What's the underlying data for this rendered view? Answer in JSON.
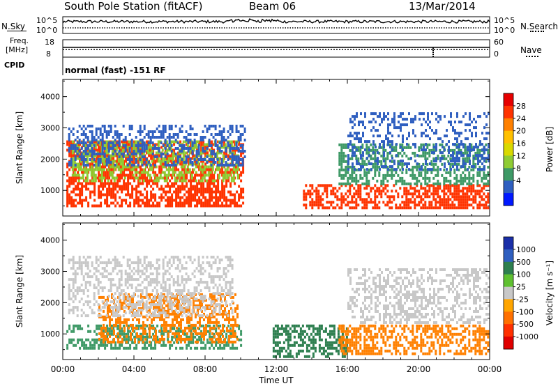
{
  "header": {
    "station": "South Pole Station (fitACF)",
    "beam": "Beam 06",
    "date": "13/Mar/2014"
  },
  "noise_panel": {
    "left_label": "N.Sky",
    "right_label": "N.Search",
    "left_ticks": [
      "10^5",
      "10^0"
    ],
    "right_ticks": [
      "10^5",
      "10^0"
    ]
  },
  "freq_panel": {
    "left_label": "Freq.",
    "left_unit": "[MHz]",
    "left_ticks": [
      "18",
      "8"
    ],
    "right_label": "Nave",
    "right_ticks": [
      "60",
      "0"
    ],
    "cpid_label": "CPID",
    "cpid_text": "normal (fast) -151 RF"
  },
  "chart_data": [
    {
      "type": "heatmap",
      "title": "",
      "ylabel": "Slant Range [km]",
      "yticks": [
        1000,
        2000,
        3000,
        4000
      ],
      "ylim": [
        180,
        4550
      ],
      "xlim": [
        0,
        24
      ],
      "xticks": [
        "00:00",
        "04:00",
        "08:00",
        "12:00",
        "16:00",
        "20:00",
        "00:00"
      ],
      "colorbar": {
        "label": "Power [dB]",
        "ticks": [
          "28",
          "24",
          "20",
          "16",
          "12",
          "8",
          "4"
        ],
        "colors": [
          "#e60000",
          "#ff3300",
          "#ff8000",
          "#ffc000",
          "#d9d900",
          "#8fcc33",
          "#3e9966",
          "#2f5fc0",
          "#0018ff"
        ]
      },
      "scatter_regions": [
        {
          "t0": 0.2,
          "t1": 10.1,
          "r0": 500,
          "r1": 2600,
          "color": "#ff3300",
          "density": 0.9
        },
        {
          "t0": 0.5,
          "t1": 9.8,
          "r0": 1300,
          "r1": 2600,
          "color": "#8fcc33",
          "density": 0.7
        },
        {
          "t0": 0.3,
          "t1": 10.2,
          "r0": 1800,
          "r1": 3100,
          "color": "#2f5fc0",
          "density": 0.55
        },
        {
          "t0": 13.5,
          "t1": 23.9,
          "r0": 400,
          "r1": 1200,
          "color": "#ff3300",
          "density": 0.85
        },
        {
          "t0": 15.5,
          "t1": 23.9,
          "r0": 1200,
          "r1": 2500,
          "color": "#3e9966",
          "density": 0.7
        },
        {
          "t0": 16.0,
          "t1": 23.9,
          "r0": 1700,
          "r1": 3500,
          "color": "#2f5fc0",
          "density": 0.45
        }
      ]
    },
    {
      "type": "heatmap",
      "title": "",
      "ylabel": "Slant Range [km]",
      "yticks": [
        1000,
        2000,
        3000,
        4000
      ],
      "ylim": [
        180,
        4550
      ],
      "xlim": [
        0,
        24
      ],
      "xticks": [
        "00:00",
        "04:00",
        "08:00",
        "12:00",
        "16:00",
        "20:00",
        "00:00"
      ],
      "xlabel": "Time UT",
      "colorbar": {
        "label": "Velocity [m s⁻¹]",
        "ticks": [
          "1000",
          "500",
          "100",
          "25",
          "-25",
          "-100",
          "-500",
          "-1000"
        ],
        "colors": [
          "#1a2fa8",
          "#2f5fc0",
          "#2d7f4f",
          "#5fc030",
          "#c8c8c8",
          "#ffa500",
          "#ff7000",
          "#ff3000",
          "#e00000"
        ]
      },
      "scatter_regions": [
        {
          "t0": 0.2,
          "t1": 10.0,
          "r0": 500,
          "r1": 1300,
          "color": "#3e9966",
          "density": 0.7
        },
        {
          "t0": 2.0,
          "t1": 9.8,
          "r0": 700,
          "r1": 2300,
          "color": "#ff8000",
          "density": 0.7
        },
        {
          "t0": 0.3,
          "t1": 9.5,
          "r0": 1600,
          "r1": 3500,
          "color": "#c8c8c8",
          "density": 0.6
        },
        {
          "t0": 11.8,
          "t1": 16.0,
          "r0": 300,
          "r1": 1300,
          "color": "#2d7f4f",
          "density": 0.8
        },
        {
          "t0": 15.5,
          "t1": 23.9,
          "r0": 400,
          "r1": 1300,
          "color": "#ff8000",
          "density": 0.8
        },
        {
          "t0": 16.0,
          "t1": 23.9,
          "r0": 1400,
          "r1": 3100,
          "color": "#c8c8c8",
          "density": 0.6
        }
      ]
    }
  ]
}
